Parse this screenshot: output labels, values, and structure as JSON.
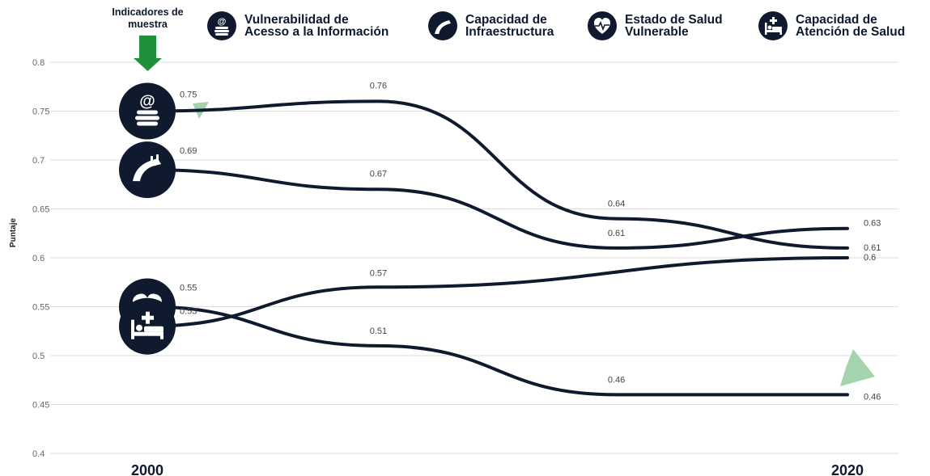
{
  "legend": {
    "sample_title": "Indicadores de\nmuestra",
    "items": [
      {
        "label": "Vulnerabilidad de\nAcesso a la Información",
        "icon": "books-at-icon"
      },
      {
        "label": "Capacidad de\nInfraestructura",
        "icon": "road-bridge-icon"
      },
      {
        "label": "Estado de Salud\nVulnerable",
        "icon": "heart-pulse-icon"
      },
      {
        "label": "Capacidad de\nAtención de Salud",
        "icon": "hospital-bed-icon"
      }
    ]
  },
  "chart_data": {
    "type": "line",
    "ylabel": "Puntaje",
    "x_ticks": [
      "2000",
      "2020"
    ],
    "ylim": [
      0.4,
      0.8
    ],
    "y_ticks": [
      "0.8",
      "0.75",
      "0.7",
      "0.65",
      "0.6",
      "0.55",
      "0.5",
      "0.45",
      "0.4"
    ],
    "grid": true,
    "trend_arrow": "down",
    "colors": {
      "line": "#0f1a2e",
      "grid": "#dedede",
      "arrow": "#a3d4ad",
      "marker": "#1f8f3a"
    },
    "series": [
      {
        "icon": "books-at-icon",
        "points": [
          [
            0,
            0.75
          ],
          [
            0.33,
            0.76
          ],
          [
            0.67,
            0.64
          ],
          [
            1,
            0.61
          ]
        ],
        "labels": [
          "0.75",
          "0.76",
          "0.64",
          "0.61"
        ]
      },
      {
        "icon": "road-bridge-icon",
        "points": [
          [
            0,
            0.69
          ],
          [
            0.33,
            0.67
          ],
          [
            0.67,
            0.61
          ],
          [
            1,
            0.63
          ]
        ],
        "labels": [
          "0.69",
          "0.67",
          "0.61",
          "0.63"
        ]
      },
      {
        "icon": "heart-pulse-icon",
        "points": [
          [
            0,
            0.55
          ],
          [
            0.33,
            0.51
          ],
          [
            0.67,
            0.46
          ],
          [
            1,
            0.46
          ]
        ],
        "labels": [
          "0.55",
          "0.51",
          "0.46",
          "0.46"
        ]
      },
      {
        "icon": "hospital-bed-icon",
        "points": [
          [
            0,
            0.53
          ],
          [
            0.33,
            0.57
          ],
          [
            1,
            0.6
          ]
        ],
        "labels": [
          "0.53",
          "0.57",
          "0.6"
        ]
      }
    ]
  }
}
